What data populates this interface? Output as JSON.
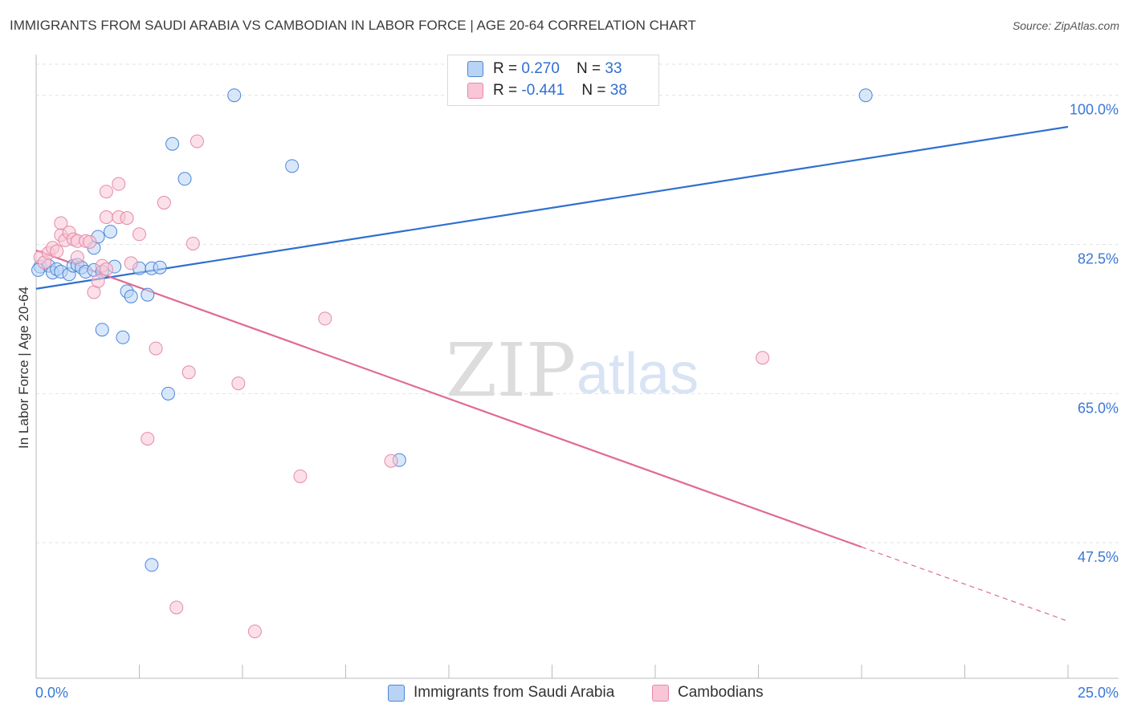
{
  "title": "IMMIGRANTS FROM SAUDI ARABIA VS CAMBODIAN IN LABOR FORCE | AGE 20-64 CORRELATION CHART",
  "source": "Source: ZipAtlas.com",
  "watermark": {
    "zip": "ZIP",
    "atlas": "atlas"
  },
  "colors": {
    "blue_fill": "#b9d3f5",
    "blue_stroke": "#4a86d8",
    "blue_line": "#2f6fd0",
    "pink_fill": "#f8c6d6",
    "pink_stroke": "#e58aa8",
    "pink_line": "#e06a95",
    "axis_label_blue": "#3a78d6",
    "grid": "#e2e2e2"
  },
  "legend": {
    "series1": {
      "r_label": "R = ",
      "r_value": "0.270",
      "n_label": "N = ",
      "n_value": "33"
    },
    "series2": {
      "r_label": "R = ",
      "r_value": "-0.441",
      "n_label": "N = ",
      "n_value": "38"
    }
  },
  "bottom_legend": {
    "series1": "Immigrants from Saudi Arabia",
    "series2": "Cambodians"
  },
  "chart_data": {
    "type": "scatter",
    "title": "IMMIGRANTS FROM SAUDI ARABIA VS CAMBODIAN IN LABOR FORCE | AGE 20-64 CORRELATION CHART",
    "xlabel": "",
    "ylabel": "In Labor Force | Age 20-64",
    "xlim": [
      0,
      25
    ],
    "ylim": [
      31.6,
      104.4
    ],
    "x_tick_labels": [
      "0.0%",
      "25.0%"
    ],
    "y_tick_values": [
      47.5,
      65.0,
      82.5,
      100.0
    ],
    "y_tick_labels": [
      "47.5%",
      "65.0%",
      "82.5%",
      "100.0%"
    ],
    "x_minor_ticks": [
      0,
      2.5,
      5,
      7.5,
      10,
      12.5,
      15,
      17.5,
      20,
      22.5,
      25
    ],
    "grid": true,
    "series": [
      {
        "name": "Immigrants from Saudi Arabia",
        "color": "blue",
        "points": [
          [
            0.1,
            79.9
          ],
          [
            0.3,
            80.0
          ],
          [
            0.4,
            79.2
          ],
          [
            0.5,
            79.6
          ],
          [
            0.6,
            79.3
          ],
          [
            0.8,
            79.0
          ],
          [
            0.9,
            80.0
          ],
          [
            1.0,
            80.1
          ],
          [
            1.1,
            79.8
          ],
          [
            1.2,
            79.3
          ],
          [
            1.4,
            79.5
          ],
          [
            1.6,
            79.3
          ],
          [
            1.4,
            82.1
          ],
          [
            1.5,
            83.4
          ],
          [
            1.8,
            84.0
          ],
          [
            1.9,
            79.9
          ],
          [
            2.2,
            77.0
          ],
          [
            2.3,
            76.4
          ],
          [
            2.5,
            79.7
          ],
          [
            2.7,
            76.6
          ],
          [
            2.8,
            79.7
          ],
          [
            3.0,
            79.8
          ],
          [
            1.6,
            72.5
          ],
          [
            2.1,
            71.6
          ],
          [
            3.2,
            65.0
          ],
          [
            3.3,
            94.3
          ],
          [
            3.6,
            90.2
          ],
          [
            4.8,
            100.0
          ],
          [
            6.2,
            91.7
          ],
          [
            8.8,
            57.2
          ],
          [
            2.8,
            44.9
          ],
          [
            20.1,
            100.0
          ],
          [
            0.05,
            79.5
          ]
        ]
      },
      {
        "name": "Cambodians",
        "color": "pink",
        "points": [
          [
            0.1,
            81.0
          ],
          [
            0.2,
            80.4
          ],
          [
            0.3,
            81.5
          ],
          [
            0.4,
            82.1
          ],
          [
            0.5,
            81.7
          ],
          [
            0.6,
            83.6
          ],
          [
            0.6,
            85.0
          ],
          [
            0.7,
            83.0
          ],
          [
            0.8,
            83.9
          ],
          [
            0.9,
            83.1
          ],
          [
            1.0,
            82.9
          ],
          [
            1.0,
            81.0
          ],
          [
            1.2,
            82.9
          ],
          [
            1.3,
            82.8
          ],
          [
            1.4,
            76.9
          ],
          [
            1.5,
            78.2
          ],
          [
            1.6,
            80.0
          ],
          [
            1.7,
            79.6
          ],
          [
            1.7,
            85.7
          ],
          [
            1.7,
            88.7
          ],
          [
            2.0,
            85.7
          ],
          [
            2.0,
            89.6
          ],
          [
            2.2,
            85.6
          ],
          [
            2.3,
            80.3
          ],
          [
            2.5,
            83.7
          ],
          [
            2.9,
            70.3
          ],
          [
            3.1,
            87.4
          ],
          [
            3.7,
            67.5
          ],
          [
            3.8,
            82.6
          ],
          [
            3.9,
            94.6
          ],
          [
            2.7,
            59.7
          ],
          [
            4.9,
            66.2
          ],
          [
            7.0,
            73.8
          ],
          [
            8.6,
            57.1
          ],
          [
            6.4,
            55.3
          ],
          [
            3.4,
            39.9
          ],
          [
            5.3,
            37.1
          ],
          [
            17.6,
            69.2
          ]
        ]
      }
    ],
    "trend_lines": [
      {
        "series": "Immigrants from Saudi Arabia",
        "x": [
          0,
          25
        ],
        "y": [
          77.3,
          96.3
        ],
        "style": "solid"
      },
      {
        "series": "Cambodians",
        "x": [
          0,
          20.0
        ],
        "y": [
          81.8,
          47.0
        ],
        "style": "solid"
      },
      {
        "series": "Cambodians",
        "x": [
          20.0,
          25
        ],
        "y": [
          47.0,
          38.3
        ],
        "style": "dashed"
      }
    ]
  }
}
